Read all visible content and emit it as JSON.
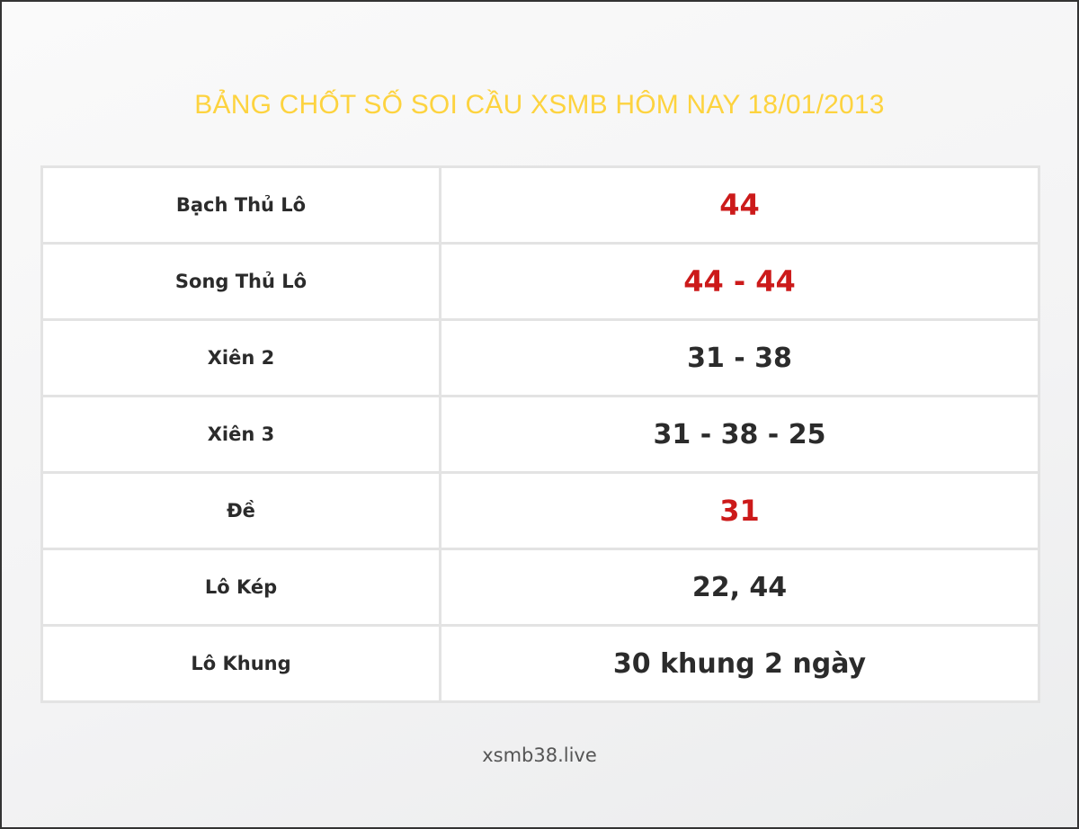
{
  "title": "BẢNG CHỐT SỐ SOI CẦU XSMB HÔM NAY 18/01/2013",
  "colors": {
    "title": "#fdd33f",
    "highlight": "#cc1a1a",
    "text": "#2b2b2b"
  },
  "rows": [
    {
      "label": "Bạch Thủ Lô",
      "value": "44",
      "highlight": true
    },
    {
      "label": "Song Thủ Lô",
      "value": "44 - 44",
      "highlight": true
    },
    {
      "label": "Xiên 2",
      "value": "31 - 38",
      "highlight": false
    },
    {
      "label": "Xiên 3",
      "value": "31 - 38 - 25",
      "highlight": false
    },
    {
      "label": "Đề",
      "value": "31",
      "highlight": true
    },
    {
      "label": "Lô Kép",
      "value": "22, 44",
      "highlight": false
    },
    {
      "label": "Lô Khung",
      "value": "30 khung 2 ngày",
      "highlight": false
    }
  ],
  "footer": "xsmb38.live"
}
